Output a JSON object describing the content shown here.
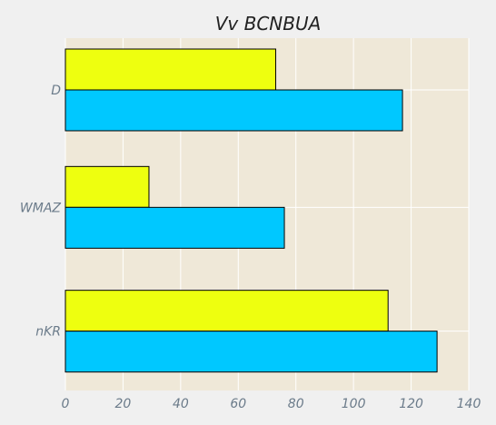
{
  "chart_data": {
    "type": "bar",
    "orientation": "horizontal",
    "title": "Vv BCNBUA",
    "xlabel": "",
    "ylabel": "",
    "categories": [
      "D",
      "WMAZ",
      "nKR"
    ],
    "series": [
      {
        "color": "#eeff0f",
        "values": [
          73,
          29,
          112
        ]
      },
      {
        "color": "#00c8ff",
        "values": [
          117,
          76,
          129
        ]
      }
    ],
    "xlim": [
      0,
      140
    ],
    "xticks": [
      0,
      20,
      40,
      60,
      80,
      100,
      120,
      140
    ],
    "grid": true,
    "legend": "none",
    "plot_background": "#efe8d8",
    "figure_background": "#f0f0f0"
  }
}
